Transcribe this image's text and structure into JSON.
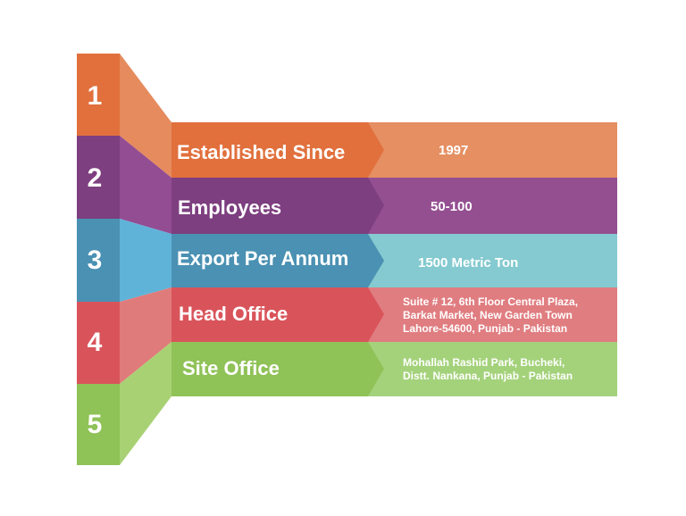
{
  "colors": {
    "orange": "#e1703d",
    "purple": "#7d3f7f",
    "blue": "#4a91b3",
    "red": "#d9545a",
    "green": "#8fc257"
  },
  "steps": [
    {
      "number": "1",
      "color": "#e1703d",
      "side": "#e58b5e",
      "value_bg": "#e58f62"
    },
    {
      "number": "2",
      "color": "#7d3f7f",
      "side": "#934d93",
      "value_bg": "#944f91"
    },
    {
      "number": "3",
      "color": "#4a91b3",
      "side": "#5fb3d8",
      "value_bg": "#84cad0"
    },
    {
      "number": "4",
      "color": "#d9545a",
      "side": "#e07b7b",
      "value_bg": "#e07d80"
    },
    {
      "number": "5",
      "color": "#8fc257",
      "side": "#a8d174",
      "value_bg": "#a4d27b"
    }
  ],
  "rows": [
    {
      "label": "Established Since",
      "value": [
        "1997"
      ]
    },
    {
      "label": "Employees",
      "value": [
        "50-100"
      ]
    },
    {
      "label": "Export Per Annum",
      "value": [
        "1500 Metric Ton"
      ]
    },
    {
      "label": "Head Office",
      "value": [
        "Suite # 12, 6th Floor Central Plaza,",
        "Barkat Market, New Garden Town",
        "Lahore-54600, Punjab - Pakistan"
      ]
    },
    {
      "label": "Site Office",
      "value": [
        "Mohallah Rashid Park, Bucheki,",
        "Distt. Nankana, Punjab - Pakistan"
      ]
    }
  ]
}
